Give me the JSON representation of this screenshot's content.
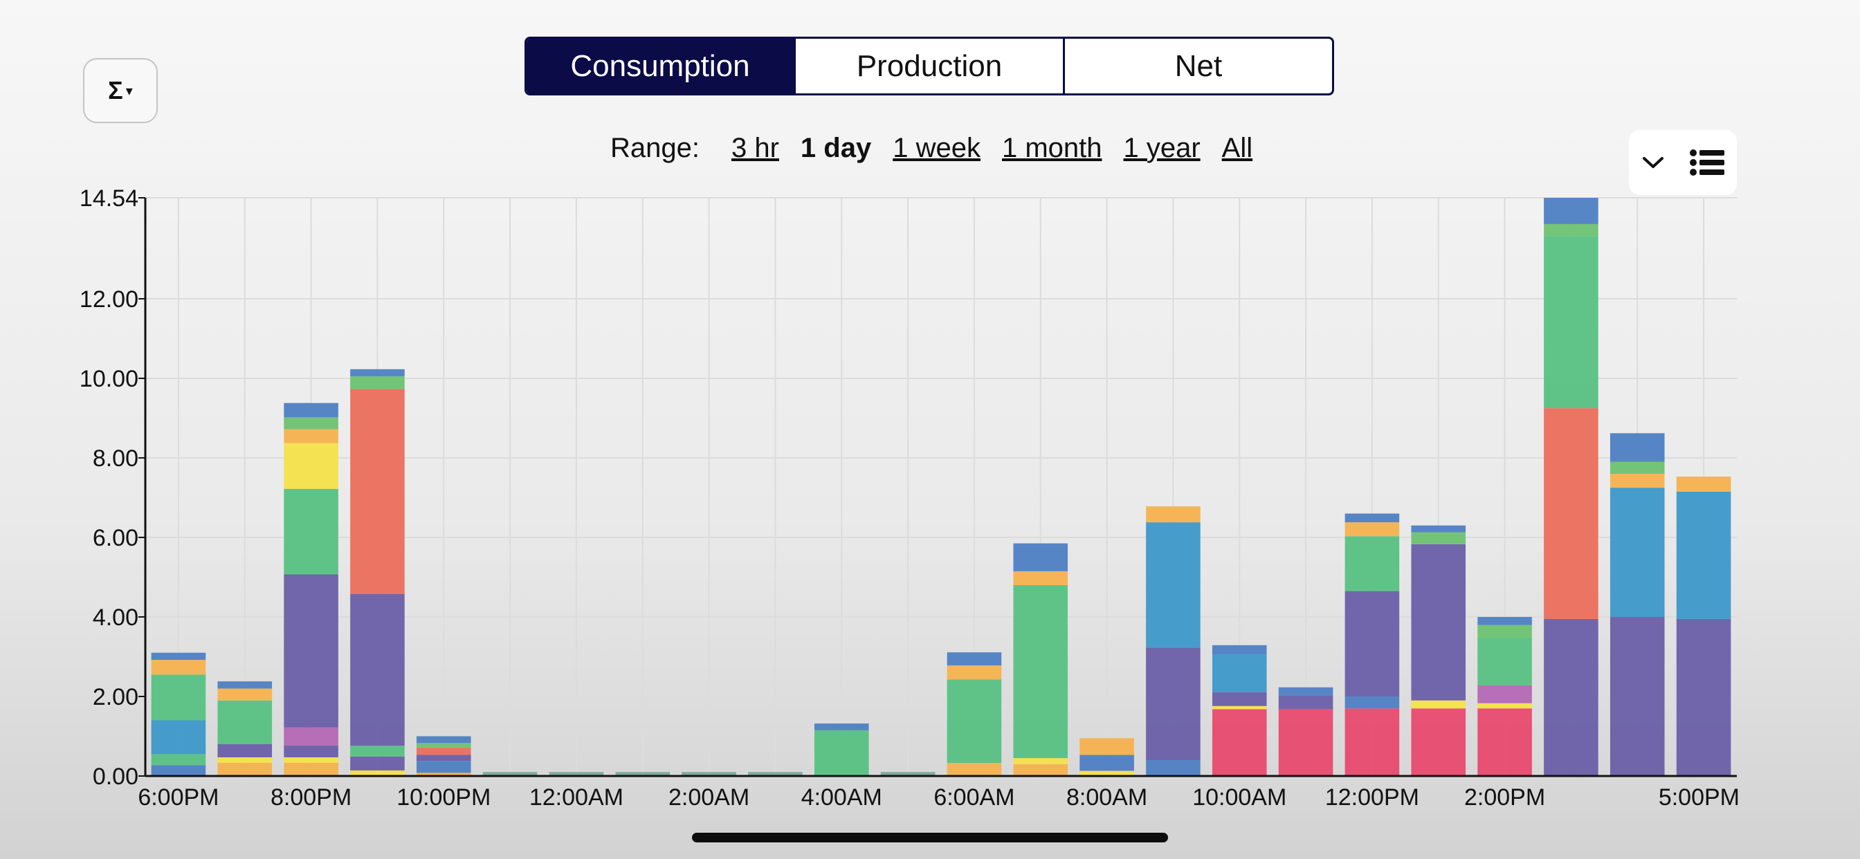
{
  "toolbar": {
    "sum_button_symbol": "Σ",
    "sum_button_caret": "▾",
    "view_modes": [
      "Consumption",
      "Production",
      "Net"
    ],
    "active_view": "Consumption"
  },
  "range": {
    "label": "Range:",
    "options": [
      "3 hr",
      "1 day",
      "1 week",
      "1 month",
      "1 year",
      "All"
    ],
    "active": "1 day"
  },
  "legend_controls": {
    "collapse_icon": "chevron-down-icon",
    "list_icon": "list-icon"
  },
  "colors": {
    "purple": "#6a5fa8",
    "blue": "#3d98c8",
    "green": "#57c183",
    "red": "#ec6e5c",
    "orange": "#f5b24e",
    "yellow": "#f6e24a",
    "steel": "#4e7fc4",
    "pink": "#e84a6e",
    "magenta": "#b468b4",
    "lightgreen": "#6dc270",
    "gray": "#7aa89a"
  },
  "chart_data": {
    "type": "bar",
    "stacked": true,
    "y_tick_labels": [
      "0.00",
      "2.00",
      "4.00",
      "6.00",
      "8.00",
      "10.00",
      "12.00",
      "14.54"
    ],
    "ylim": [
      0,
      14.54
    ],
    "grid": true,
    "x_tick_labels": [
      "6:00PM",
      "8:00PM",
      "10:00PM",
      "12:00AM",
      "2:00AM",
      "4:00AM",
      "6:00AM",
      "8:00AM",
      "10:00AM",
      "12:00PM",
      "2:00PM",
      "5:00PM"
    ],
    "x_tick_positions": [
      0,
      2,
      4,
      6,
      8,
      10,
      12,
      14,
      16,
      18,
      20,
      23
    ],
    "bars": [
      {
        "segments": [
          {
            "c": "steel",
            "v": 0.27
          },
          {
            "c": "green",
            "v": 0.28
          },
          {
            "c": "blue",
            "v": 0.85
          },
          {
            "c": "green",
            "v": 1.15
          },
          {
            "c": "orange",
            "v": 0.37
          },
          {
            "c": "steel",
            "v": 0.18
          }
        ]
      },
      {
        "segments": [
          {
            "c": "orange",
            "v": 0.33
          },
          {
            "c": "yellow",
            "v": 0.14
          },
          {
            "c": "purple",
            "v": 0.33
          },
          {
            "c": "green",
            "v": 1.1
          },
          {
            "c": "orange",
            "v": 0.3
          },
          {
            "c": "steel",
            "v": 0.18
          }
        ]
      },
      {
        "segments": [
          {
            "c": "orange",
            "v": 0.33
          },
          {
            "c": "yellow",
            "v": 0.14
          },
          {
            "c": "purple",
            "v": 0.3
          },
          {
            "c": "magenta",
            "v": 0.45
          },
          {
            "c": "purple",
            "v": 3.85
          },
          {
            "c": "green",
            "v": 2.15
          },
          {
            "c": "yellow",
            "v": 1.15
          },
          {
            "c": "orange",
            "v": 0.35
          },
          {
            "c": "lightgreen",
            "v": 0.3
          },
          {
            "c": "steel",
            "v": 0.36
          }
        ]
      },
      {
        "segments": [
          {
            "c": "yellow",
            "v": 0.14
          },
          {
            "c": "purple",
            "v": 0.35
          },
          {
            "c": "green",
            "v": 0.27
          },
          {
            "c": "purple",
            "v": 3.82
          },
          {
            "c": "red",
            "v": 5.15
          },
          {
            "c": "lightgreen",
            "v": 0.32
          },
          {
            "c": "steel",
            "v": 0.18
          }
        ]
      },
      {
        "segments": [
          {
            "c": "orange",
            "v": 0.08
          },
          {
            "c": "steel",
            "v": 0.3
          },
          {
            "c": "purple",
            "v": 0.15
          },
          {
            "c": "red",
            "v": 0.18
          },
          {
            "c": "lightgreen",
            "v": 0.12
          },
          {
            "c": "steel",
            "v": 0.17
          }
        ]
      },
      {
        "segments": [
          {
            "c": "gray",
            "v": 0.1
          }
        ]
      },
      {
        "segments": [
          {
            "c": "gray",
            "v": 0.1
          }
        ]
      },
      {
        "segments": [
          {
            "c": "gray",
            "v": 0.1
          }
        ]
      },
      {
        "segments": [
          {
            "c": "gray",
            "v": 0.1
          }
        ]
      },
      {
        "segments": [
          {
            "c": "gray",
            "v": 0.1
          }
        ]
      },
      {
        "segments": [
          {
            "c": "green",
            "v": 1.15
          },
          {
            "c": "steel",
            "v": 0.17
          }
        ]
      },
      {
        "segments": [
          {
            "c": "gray",
            "v": 0.1
          }
        ]
      },
      {
        "segments": [
          {
            "c": "orange",
            "v": 0.33
          },
          {
            "c": "green",
            "v": 2.1
          },
          {
            "c": "orange",
            "v": 0.35
          },
          {
            "c": "steel",
            "v": 0.33
          }
        ]
      },
      {
        "segments": [
          {
            "c": "orange",
            "v": 0.3
          },
          {
            "c": "yellow",
            "v": 0.15
          },
          {
            "c": "green",
            "v": 4.35
          },
          {
            "c": "orange",
            "v": 0.35
          },
          {
            "c": "steel",
            "v": 0.7
          }
        ]
      },
      {
        "segments": [
          {
            "c": "yellow",
            "v": 0.13
          },
          {
            "c": "steel",
            "v": 0.4
          },
          {
            "c": "orange",
            "v": 0.42
          }
        ]
      },
      {
        "segments": [
          {
            "c": "steel",
            "v": 0.4
          },
          {
            "c": "purple",
            "v": 2.83
          },
          {
            "c": "blue",
            "v": 3.15
          },
          {
            "c": "orange",
            "v": 0.4
          }
        ]
      },
      {
        "segments": [
          {
            "c": "pink",
            "v": 1.68
          },
          {
            "c": "yellow",
            "v": 0.08
          },
          {
            "c": "purple",
            "v": 0.35
          },
          {
            "c": "blue",
            "v": 0.95
          },
          {
            "c": "steel",
            "v": 0.23
          }
        ]
      },
      {
        "segments": [
          {
            "c": "pink",
            "v": 1.68
          },
          {
            "c": "purple",
            "v": 0.35
          },
          {
            "c": "steel",
            "v": 0.2
          }
        ]
      },
      {
        "segments": [
          {
            "c": "pink",
            "v": 1.7
          },
          {
            "c": "steel",
            "v": 0.3
          },
          {
            "c": "purple",
            "v": 2.65
          },
          {
            "c": "green",
            "v": 1.38
          },
          {
            "c": "orange",
            "v": 0.35
          },
          {
            "c": "steel",
            "v": 0.22
          }
        ]
      },
      {
        "segments": [
          {
            "c": "pink",
            "v": 1.7
          },
          {
            "c": "yellow",
            "v": 0.2
          },
          {
            "c": "purple",
            "v": 3.93
          },
          {
            "c": "lightgreen",
            "v": 0.3
          },
          {
            "c": "steel",
            "v": 0.17
          }
        ]
      },
      {
        "segments": [
          {
            "c": "pink",
            "v": 1.7
          },
          {
            "c": "yellow",
            "v": 0.13
          },
          {
            "c": "magenta",
            "v": 0.45
          },
          {
            "c": "green",
            "v": 1.2
          },
          {
            "c": "lightgreen",
            "v": 0.32
          },
          {
            "c": "steel",
            "v": 0.2
          }
        ]
      },
      {
        "segments": [
          {
            "c": "purple",
            "v": 3.95
          },
          {
            "c": "red",
            "v": 5.3
          },
          {
            "c": "green",
            "v": 4.33
          },
          {
            "c": "lightgreen",
            "v": 0.3
          },
          {
            "c": "steel",
            "v": 0.7
          }
        ]
      },
      {
        "segments": [
          {
            "c": "purple",
            "v": 4.0
          },
          {
            "c": "blue",
            "v": 3.25
          },
          {
            "c": "orange",
            "v": 0.35
          },
          {
            "c": "lightgreen",
            "v": 0.3
          },
          {
            "c": "steel",
            "v": 0.72
          }
        ]
      },
      {
        "segments": [
          {
            "c": "purple",
            "v": 3.95
          },
          {
            "c": "blue",
            "v": 3.2
          },
          {
            "c": "orange",
            "v": 0.38
          }
        ]
      }
    ]
  }
}
